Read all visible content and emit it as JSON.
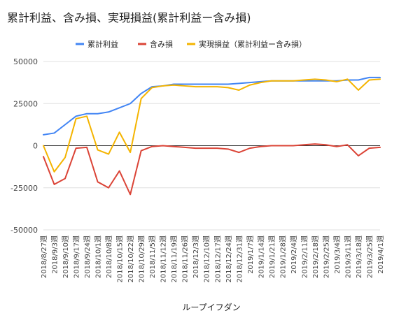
{
  "chart_data": {
    "type": "line",
    "title": "累計利益、含み損、実現損益(累計利益ー含み損)",
    "xlabel": "ループイフダン",
    "ylabel": "",
    "ylim": [
      -50000,
      50000
    ],
    "yticks": [
      50000,
      25000,
      0,
      -25000,
      -50000
    ],
    "ytick_labels": [
      "50000",
      "25000",
      "0",
      "-25000",
      "-50000"
    ],
    "grid": true,
    "legend": "top-center",
    "categories": [
      "2018/8/27週",
      "2018/9/3週",
      "2018/9/10週",
      "2018/9/17週",
      "2018/9/24週",
      "2018/10/1週",
      "2018/10/8週",
      "2018/10/15週",
      "2018/10/22週",
      "2018/10/29週",
      "2018/11/5週",
      "2018/11/12週",
      "2018/11/19週",
      "2018/11/26週",
      "2018/12/3週",
      "2018/12/10週",
      "2018/12/17週",
      "2018/12/24週",
      "2018/12/31週",
      "2019/1/7週",
      "2019/1/14週",
      "2019/1/21週",
      "2019/1/28週",
      "2019/2/4週",
      "2019/2/11週",
      "2019/2/18週",
      "2019/2/25週",
      "2019/3/4週",
      "2019/3/11週",
      "2019/3/18週",
      "2019/3/25週",
      "2019/4/1週"
    ],
    "series": [
      {
        "name": "累計利益",
        "color": "#4285f4",
        "values": [
          6500,
          7500,
          12500,
          17500,
          19000,
          19000,
          20000,
          22500,
          25000,
          31000,
          35000,
          35500,
          36500,
          36500,
          36500,
          36500,
          36500,
          36500,
          37000,
          37500,
          38000,
          38500,
          38500,
          38500,
          38500,
          38500,
          38500,
          38500,
          39000,
          39000,
          40500,
          40500
        ]
      },
      {
        "name": "含み損",
        "color": "#db4437",
        "values": [
          -6500,
          -23000,
          -19500,
          -1500,
          -1000,
          -21500,
          -25000,
          -15000,
          -29000,
          -3000,
          -500,
          0,
          -500,
          -1000,
          -1500,
          -1500,
          -1500,
          -2000,
          -4000,
          -1500,
          -500,
          0,
          0,
          0,
          500,
          1000,
          500,
          -500,
          500,
          -6000,
          -1500,
          -1000
        ]
      },
      {
        "name": "実現損益（累計利益ー含み損）",
        "color": "#f4b400",
        "values": [
          0,
          -15500,
          -7000,
          16000,
          17500,
          -2500,
          -5000,
          8000,
          -4000,
          28000,
          34500,
          35500,
          36000,
          35500,
          35000,
          35000,
          35000,
          34500,
          33000,
          36000,
          37500,
          38500,
          38500,
          38500,
          39000,
          39500,
          39000,
          38000,
          39500,
          33000,
          39000,
          39500
        ]
      }
    ]
  }
}
